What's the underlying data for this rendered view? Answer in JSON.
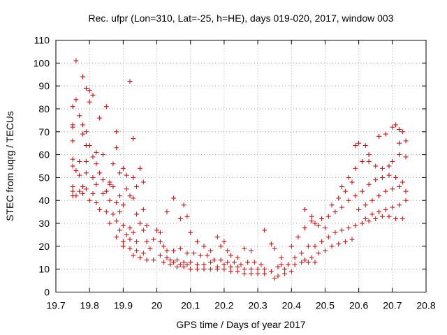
{
  "chart_data": {
    "type": "scatter",
    "title": "Rec. ufpr (Lon=310, Lat=-25, h=HE), days 019-020, 2017, window 003",
    "xlabel": "GPS time / Days of year 2017",
    "ylabel": "STEC from uqrg / TECUs",
    "xlim": [
      19.7,
      20.8
    ],
    "ylim": [
      0,
      110
    ],
    "xticks": [
      "19.7",
      "19.8",
      "19.9",
      "20",
      "20.1",
      "20.2",
      "20.3",
      "20.4",
      "20.5",
      "20.6",
      "20.7",
      "20.8"
    ],
    "yticks": [
      "0",
      "10",
      "20",
      "30",
      "40",
      "50",
      "60",
      "70",
      "80",
      "90",
      "100",
      "110"
    ],
    "grid": true,
    "marker": "plus",
    "color": "#cc0000",
    "series": [
      {
        "points": [
          [
            19.76,
            101
          ],
          [
            19.78,
            94
          ],
          [
            19.92,
            92
          ],
          [
            19.79,
            89
          ],
          [
            19.8,
            88
          ],
          [
            19.81,
            86
          ],
          [
            19.8,
            83
          ],
          [
            19.76,
            84
          ],
          [
            19.75,
            81
          ],
          [
            19.85,
            81
          ],
          [
            19.77,
            77
          ],
          [
            19.83,
            76
          ],
          [
            19.78,
            73
          ],
          [
            19.75,
            73
          ],
          [
            19.75,
            72
          ],
          [
            19.79,
            70
          ],
          [
            19.88,
            70
          ],
          [
            19.78,
            69
          ],
          [
            19.93,
            67
          ],
          [
            19.75,
            66
          ],
          [
            19.79,
            64
          ],
          [
            19.8,
            64
          ],
          [
            19.88,
            63
          ],
          [
            19.82,
            61
          ],
          [
            19.81,
            59
          ],
          [
            19.84,
            60
          ],
          [
            19.75,
            58
          ],
          [
            19.77,
            57
          ],
          [
            19.79,
            57
          ],
          [
            19.82,
            56
          ],
          [
            19.87,
            56
          ],
          [
            19.75,
            55
          ],
          [
            19.9,
            54
          ],
          [
            19.95,
            54
          ],
          [
            19.76,
            53
          ],
          [
            19.79,
            52
          ],
          [
            19.83,
            52
          ],
          [
            19.89,
            52
          ],
          [
            19.91,
            51
          ],
          [
            19.77,
            51
          ],
          [
            19.81,
            50
          ],
          [
            19.84,
            49
          ],
          [
            19.86,
            48
          ],
          [
            19.93,
            50
          ],
          [
            19.96,
            48
          ],
          [
            19.75,
            46
          ],
          [
            19.78,
            46
          ],
          [
            19.82,
            47
          ],
          [
            19.86,
            47
          ],
          [
            19.87,
            46
          ],
          [
            19.91,
            45
          ],
          [
            19.94,
            46
          ],
          [
            19.75,
            44
          ],
          [
            19.77,
            44
          ],
          [
            19.79,
            45
          ],
          [
            19.81,
            43
          ],
          [
            19.84,
            43
          ],
          [
            19.85,
            44
          ],
          [
            19.89,
            42
          ],
          [
            19.92,
            42
          ],
          [
            19.75,
            42
          ],
          [
            19.76,
            42
          ],
          [
            19.78,
            43
          ],
          [
            19.8,
            40
          ],
          [
            19.82,
            39
          ],
          [
            19.86,
            40
          ],
          [
            19.88,
            39
          ],
          [
            19.9,
            38
          ],
          [
            19.93,
            41
          ],
          [
            19.83,
            36
          ],
          [
            19.85,
            35
          ],
          [
            19.87,
            34
          ],
          [
            19.89,
            35
          ],
          [
            19.96,
            36
          ],
          [
            19.94,
            34
          ],
          [
            19.86,
            30
          ],
          [
            19.88,
            31
          ],
          [
            19.9,
            29
          ],
          [
            19.92,
            28
          ],
          [
            19.95,
            30
          ],
          [
            19.97,
            29
          ],
          [
            19.89,
            27
          ],
          [
            19.91,
            25
          ],
          [
            19.93,
            26
          ],
          [
            19.96,
            27
          ],
          [
            19.88,
            24
          ],
          [
            19.9,
            22
          ],
          [
            19.92,
            23
          ],
          [
            19.94,
            22
          ],
          [
            19.97,
            22
          ],
          [
            19.99,
            23
          ],
          [
            19.9,
            20
          ],
          [
            19.92,
            19
          ],
          [
            19.94,
            18
          ],
          [
            19.96,
            17
          ],
          [
            19.98,
            19
          ],
          [
            19.93,
            16
          ],
          [
            19.95,
            15
          ],
          [
            19.97,
            14
          ],
          [
            19.99,
            14
          ],
          [
            20.0,
            27
          ],
          [
            20.01,
            26
          ],
          [
            20.03,
            35
          ],
          [
            20.05,
            41
          ],
          [
            20.08,
            38
          ],
          [
            20.07,
            32
          ],
          [
            20.09,
            33
          ],
          [
            20.1,
            26
          ],
          [
            20.12,
            22
          ],
          [
            20.14,
            20
          ],
          [
            20.01,
            22
          ],
          [
            20.02,
            20
          ],
          [
            20.03,
            18
          ],
          [
            20.05,
            18
          ],
          [
            20.07,
            19
          ],
          [
            20.09,
            17
          ],
          [
            20.11,
            17
          ],
          [
            20.13,
            16
          ],
          [
            20.15,
            16
          ],
          [
            20.01,
            16
          ],
          [
            20.03,
            15
          ],
          [
            20.04,
            14
          ],
          [
            20.06,
            14
          ],
          [
            20.08,
            13
          ],
          [
            20.1,
            13
          ],
          [
            20.12,
            12
          ],
          [
            20.14,
            12
          ],
          [
            20.16,
            13
          ],
          [
            20.02,
            13
          ],
          [
            20.04,
            12
          ],
          [
            20.06,
            11
          ],
          [
            20.08,
            11
          ],
          [
            20.1,
            10
          ],
          [
            20.12,
            10
          ],
          [
            20.14,
            10
          ],
          [
            20.16,
            10
          ],
          [
            20.18,
            11
          ],
          [
            20.05,
            13
          ],
          [
            20.07,
            12
          ],
          [
            20.09,
            12
          ],
          [
            20.16,
            18
          ],
          [
            20.18,
            24
          ],
          [
            20.19,
            20
          ],
          [
            20.2,
            22
          ],
          [
            20.21,
            18
          ],
          [
            20.22,
            16
          ],
          [
            20.24,
            15
          ],
          [
            20.26,
            19
          ],
          [
            20.28,
            18
          ],
          [
            20.17,
            14
          ],
          [
            20.19,
            14
          ],
          [
            20.21,
            13
          ],
          [
            20.23,
            13
          ],
          [
            20.25,
            12
          ],
          [
            20.27,
            13
          ],
          [
            20.29,
            13
          ],
          [
            20.31,
            12
          ],
          [
            20.18,
            10
          ],
          [
            20.2,
            10
          ],
          [
            20.22,
            9
          ],
          [
            20.24,
            9
          ],
          [
            20.26,
            8
          ],
          [
            20.28,
            8
          ],
          [
            20.3,
            8
          ],
          [
            20.32,
            8
          ],
          [
            20.2,
            12
          ],
          [
            20.22,
            11
          ],
          [
            20.24,
            11
          ],
          [
            20.26,
            10
          ],
          [
            20.28,
            10
          ],
          [
            20.3,
            10
          ],
          [
            20.32,
            10
          ],
          [
            20.34,
            9
          ],
          [
            20.32,
            27
          ],
          [
            20.34,
            21
          ],
          [
            20.35,
            19
          ],
          [
            20.37,
            15
          ],
          [
            20.36,
            11
          ],
          [
            20.38,
            10
          ],
          [
            20.35,
            6
          ],
          [
            20.36,
            7
          ],
          [
            20.38,
            8
          ],
          [
            20.4,
            9
          ],
          [
            20.39,
            12
          ],
          [
            20.41,
            12
          ],
          [
            20.43,
            13
          ],
          [
            20.45,
            13
          ],
          [
            20.47,
            13
          ],
          [
            20.37,
            12
          ],
          [
            20.4,
            20
          ],
          [
            20.42,
            24
          ],
          [
            20.44,
            28
          ],
          [
            20.46,
            31
          ],
          [
            20.44,
            36
          ],
          [
            20.46,
            33
          ],
          [
            20.48,
            29
          ],
          [
            20.5,
            28
          ],
          [
            20.41,
            15
          ],
          [
            20.43,
            17
          ],
          [
            20.45,
            20
          ],
          [
            20.47,
            20
          ],
          [
            20.49,
            22
          ],
          [
            20.51,
            24
          ],
          [
            20.53,
            26
          ],
          [
            20.55,
            27
          ],
          [
            20.44,
            14
          ],
          [
            20.46,
            15
          ],
          [
            20.48,
            17
          ],
          [
            20.5,
            18
          ],
          [
            20.52,
            20
          ],
          [
            20.54,
            21
          ],
          [
            20.56,
            22
          ],
          [
            20.58,
            23
          ],
          [
            20.47,
            30
          ],
          [
            20.49,
            32
          ],
          [
            20.51,
            33
          ],
          [
            20.53,
            35
          ],
          [
            20.55,
            37
          ],
          [
            20.57,
            40
          ],
          [
            20.59,
            42
          ],
          [
            20.52,
            38
          ],
          [
            20.54,
            41
          ],
          [
            20.56,
            44
          ],
          [
            20.58,
            48
          ],
          [
            20.55,
            46
          ],
          [
            20.57,
            50
          ],
          [
            20.59,
            54
          ],
          [
            20.61,
            57
          ],
          [
            20.63,
            60
          ],
          [
            20.59,
            64
          ],
          [
            20.6,
            65
          ],
          [
            20.62,
            64
          ],
          [
            20.63,
            57
          ],
          [
            20.65,
            55
          ],
          [
            20.67,
            54
          ],
          [
            20.69,
            55
          ],
          [
            20.7,
            57
          ],
          [
            20.72,
            60
          ],
          [
            20.74,
            59
          ],
          [
            20.57,
            28
          ],
          [
            20.59,
            29
          ],
          [
            20.61,
            30
          ],
          [
            20.63,
            31
          ],
          [
            20.65,
            32
          ],
          [
            20.67,
            33
          ],
          [
            20.69,
            33
          ],
          [
            20.71,
            32
          ],
          [
            20.73,
            32
          ],
          [
            20.6,
            36
          ],
          [
            20.62,
            38
          ],
          [
            20.64,
            40
          ],
          [
            20.66,
            42
          ],
          [
            20.68,
            44
          ],
          [
            20.7,
            45
          ],
          [
            20.72,
            46
          ],
          [
            20.74,
            44
          ],
          [
            20.61,
            44
          ],
          [
            20.63,
            47
          ],
          [
            20.65,
            49
          ],
          [
            20.67,
            50
          ],
          [
            20.69,
            51
          ],
          [
            20.71,
            50
          ],
          [
            20.73,
            48
          ],
          [
            20.66,
            68
          ],
          [
            20.68,
            69
          ],
          [
            20.7,
            72
          ],
          [
            20.71,
            73
          ],
          [
            20.72,
            71
          ],
          [
            20.73,
            70
          ],
          [
            20.74,
            66
          ],
          [
            20.72,
            65
          ],
          [
            20.74,
            40
          ],
          [
            20.72,
            38
          ],
          [
            20.7,
            37
          ],
          [
            20.68,
            36
          ],
          [
            20.66,
            35
          ],
          [
            20.64,
            34
          ],
          [
            20.62,
            32
          ]
        ]
      }
    ]
  }
}
